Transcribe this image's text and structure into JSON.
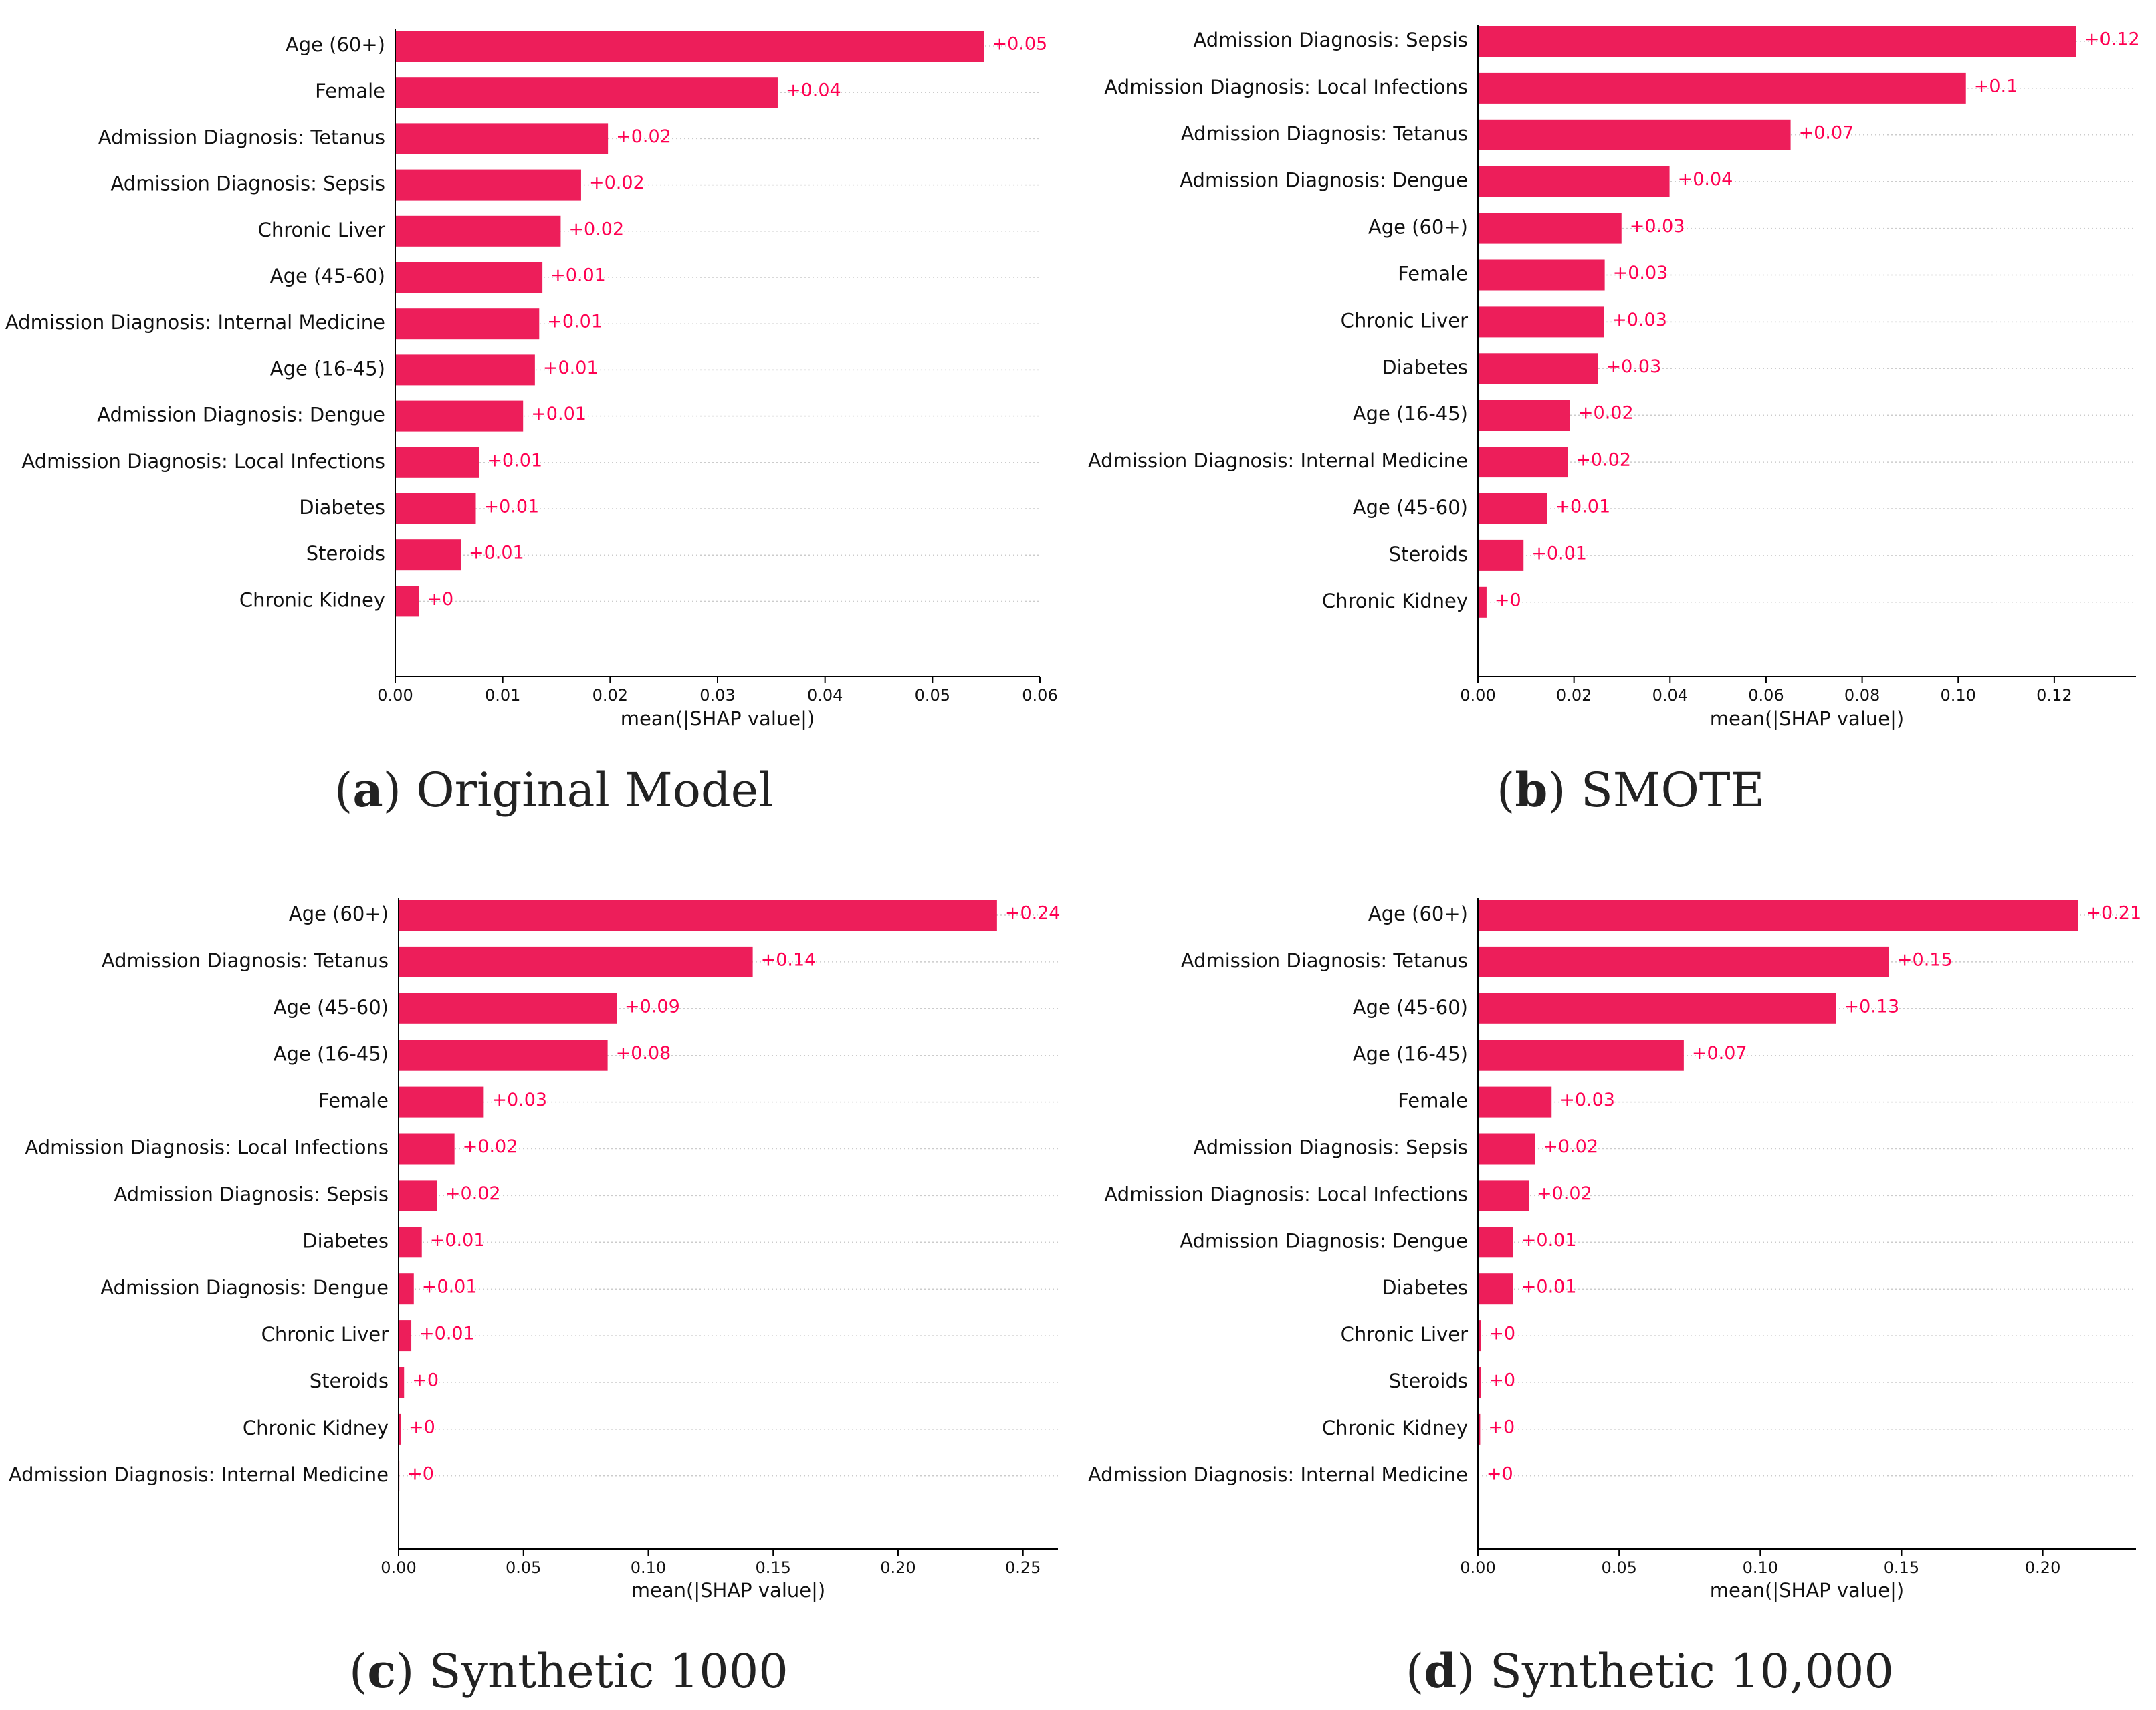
{
  "bar_color": "#ed1e5a",
  "label_color": "#ff0051",
  "chart_data": [
    {
      "type": "bar",
      "orientation": "horizontal",
      "panel_letter": "a",
      "title": "Original Model",
      "xlabel": "mean(|SHAP value|)",
      "xlim": [
        0,
        0.06
      ],
      "xticks": [
        0,
        0.01,
        0.02,
        0.03,
        0.04,
        0.05,
        0.06
      ],
      "xtick_labels": [
        "0.00",
        "0.01",
        "0.02",
        "0.03",
        "0.04",
        "0.05",
        "0.06"
      ],
      "categories": [
        "Age (60+)",
        "Female",
        "Admission Diagnosis: Tetanus",
        "Admission Diagnosis: Sepsis",
        "Chronic Liver",
        "Age (45-60)",
        "Admission Diagnosis: Internal Medicine",
        "Age (16-45)",
        "Admission Diagnosis: Dengue",
        "Admission Diagnosis: Local Infections",
        "Diabetes",
        "Steroids",
        "Chronic Kidney"
      ],
      "values": [
        0.0548,
        0.0356,
        0.0198,
        0.0173,
        0.0154,
        0.0137,
        0.0134,
        0.013,
        0.0119,
        0.0078,
        0.0075,
        0.0061,
        0.0022
      ],
      "value_labels": [
        "+0.05",
        "+0.04",
        "+0.02",
        "+0.02",
        "+0.02",
        "+0.01",
        "+0.01",
        "+0.01",
        "+0.01",
        "+0.01",
        "+0.01",
        "+0.01",
        "+0"
      ]
    },
    {
      "type": "bar",
      "orientation": "horizontal",
      "panel_letter": "b",
      "title": "SMOTE",
      "xlabel": "mean(|SHAP value|)",
      "xlim": [
        0,
        0.137
      ],
      "xticks": [
        0,
        0.02,
        0.04,
        0.06,
        0.08,
        0.1,
        0.12
      ],
      "xtick_labels": [
        "0.00",
        "0.02",
        "0.04",
        "0.06",
        "0.08",
        "0.10",
        "0.12"
      ],
      "categories": [
        "Admission Diagnosis: Sepsis",
        "Admission Diagnosis: Local Infections",
        "Admission Diagnosis: Tetanus",
        "Admission Diagnosis: Dengue",
        "Age (60+)",
        "Female",
        "Chronic Liver",
        "Diabetes",
        "Age (16-45)",
        "Admission Diagnosis: Internal Medicine",
        "Age (45-60)",
        "Steroids",
        "Chronic Kidney"
      ],
      "values": [
        0.1246,
        0.1016,
        0.0651,
        0.0399,
        0.0299,
        0.0264,
        0.0262,
        0.025,
        0.0192,
        0.0187,
        0.0144,
        0.0095,
        0.0018
      ],
      "value_labels": [
        "+0.12",
        "+0.1",
        "+0.07",
        "+0.04",
        "+0.03",
        "+0.03",
        "+0.03",
        "+0.03",
        "+0.02",
        "+0.02",
        "+0.01",
        "+0.01",
        "+0"
      ]
    },
    {
      "type": "bar",
      "orientation": "horizontal",
      "panel_letter": "c",
      "title": "Synthetic 1000",
      "xlabel": "mean(|SHAP value|)",
      "xlim": [
        0,
        0.264
      ],
      "xticks": [
        0,
        0.05,
        0.1,
        0.15,
        0.2,
        0.25
      ],
      "xtick_labels": [
        "0.00",
        "0.05",
        "0.10",
        "0.15",
        "0.20",
        "0.25"
      ],
      "categories": [
        "Age (60+)",
        "Admission Diagnosis: Tetanus",
        "Age (45-60)",
        "Age (16-45)",
        "Female",
        "Admission Diagnosis: Local Infections",
        "Admission Diagnosis: Sepsis",
        "Diabetes",
        "Admission Diagnosis: Dengue",
        "Chronic Liver",
        "Steroids",
        "Chronic Kidney",
        "Admission Diagnosis: Internal Medicine"
      ],
      "values": [
        0.2396,
        0.1418,
        0.0873,
        0.0837,
        0.0341,
        0.0224,
        0.0155,
        0.0093,
        0.0061,
        0.0051,
        0.0022,
        0.0008,
        0.0003
      ],
      "value_labels": [
        "+0.24",
        "+0.14",
        "+0.09",
        "+0.08",
        "+0.03",
        "+0.02",
        "+0.02",
        "+0.01",
        "+0.01",
        "+0.01",
        "+0",
        "+0",
        "+0"
      ]
    },
    {
      "type": "bar",
      "orientation": "horizontal",
      "panel_letter": "d",
      "title": "Synthetic 10,000",
      "xlabel": "mean(|SHAP value|)",
      "xlim": [
        0,
        0.233
      ],
      "xticks": [
        0,
        0.05,
        0.1,
        0.15,
        0.2
      ],
      "xtick_labels": [
        "0.00",
        "0.05",
        "0.10",
        "0.15",
        "0.20"
      ],
      "categories": [
        "Age (60+)",
        "Admission Diagnosis: Tetanus",
        "Age (45-60)",
        "Age (16-45)",
        "Female",
        "Admission Diagnosis: Sepsis",
        "Admission Diagnosis: Local Infections",
        "Admission Diagnosis: Dengue",
        "Diabetes",
        "Chronic Liver",
        "Steroids",
        "Chronic Kidney",
        "Admission Diagnosis: Internal Medicine"
      ],
      "values": [
        0.2125,
        0.1456,
        0.1268,
        0.0729,
        0.0261,
        0.0202,
        0.018,
        0.0125,
        0.0125,
        0.001,
        0.001,
        0.0008,
        0.0002
      ],
      "value_labels": [
        "+0.21",
        "+0.15",
        "+0.13",
        "+0.07",
        "+0.03",
        "+0.02",
        "+0.02",
        "+0.01",
        "+0.01",
        "+0",
        "+0",
        "+0",
        "+0"
      ]
    }
  ]
}
